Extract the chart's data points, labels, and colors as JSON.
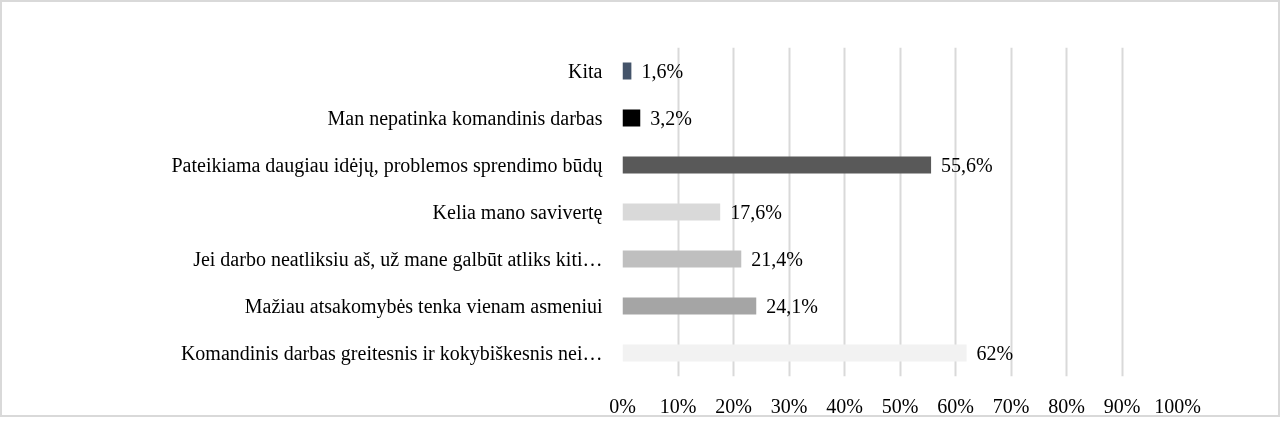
{
  "chart_data": {
    "type": "bar",
    "orientation": "horizontal",
    "categories": [
      "Kita",
      "Man nepatinka komandinis darbas",
      "Pateikiama daugiau idėjų, problemos sprendimo būdų",
      "Kelia mano savivertę",
      "Jei darbo neatliksiu aš, už mane galbūt atliks kiti…",
      "Mažiau atsakomybės tenka vienam asmeniui",
      "Komandinis darbas greitesnis ir kokybiškesnis nei…"
    ],
    "values": [
      1.6,
      3.2,
      55.6,
      17.6,
      21.4,
      24.1,
      62
    ],
    "value_labels": [
      "1,6%",
      "3,2%",
      "55,6%",
      "17,6%",
      "21,4%",
      "24,1%",
      "62%"
    ],
    "colors": [
      "#44546a",
      "#000000",
      "#595959",
      "#d9d9d9",
      "#bfbfbf",
      "#a5a5a5",
      "#f2f2f2"
    ],
    "xlim": [
      0,
      100
    ],
    "xticks": [
      {
        "value": 0,
        "label": "0%"
      },
      {
        "value": 10,
        "label": "10%"
      },
      {
        "value": 20,
        "label": "20%"
      },
      {
        "value": 30,
        "label": "30%"
      },
      {
        "value": 40,
        "label": "40%"
      },
      {
        "value": 50,
        "label": "50%"
      },
      {
        "value": 60,
        "label": "60%"
      },
      {
        "value": 70,
        "label": "70%"
      },
      {
        "value": 80,
        "label": "80%"
      },
      {
        "value": 90,
        "label": "90%"
      },
      {
        "value": 100,
        "label": "100%"
      }
    ],
    "grid": "x"
  }
}
